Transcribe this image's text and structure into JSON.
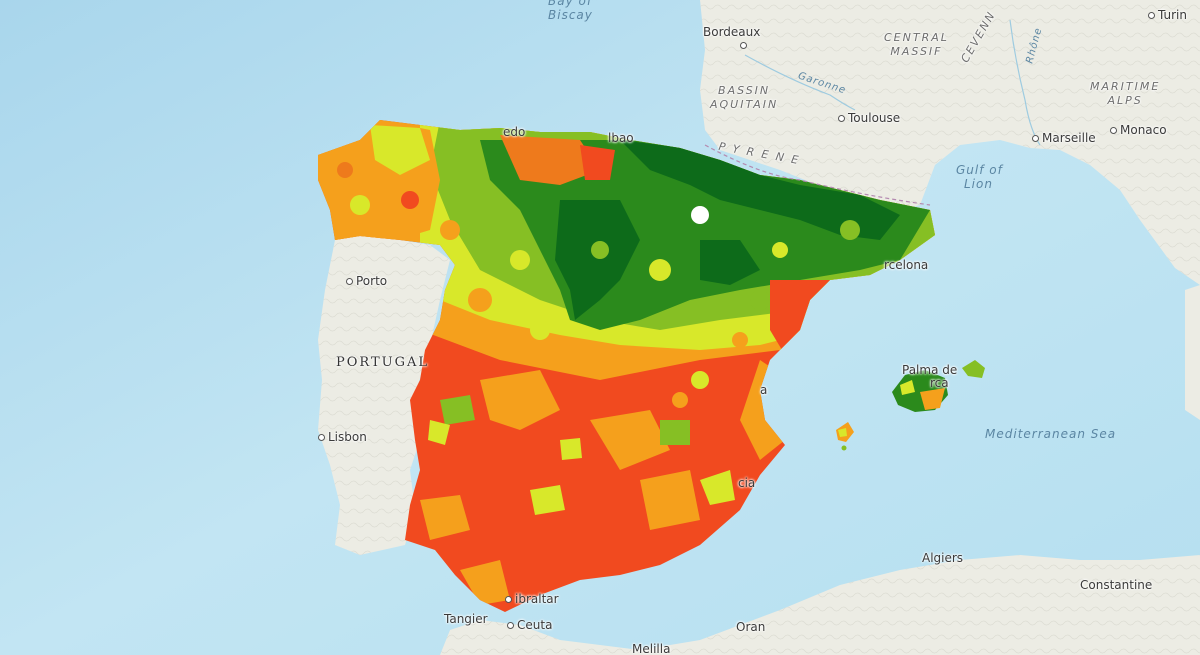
{
  "map": {
    "colors": {
      "sea": "#bfe3f2",
      "land": "#ebebe4",
      "high": "#0d6b1a",
      "mid_high": "#6aaa1e",
      "mid": "#d8e82a",
      "mid_low": "#f5a01c",
      "low": "#f14a1f"
    },
    "cities": [
      {
        "id": "bordeaux",
        "name": "Bordeaux"
      },
      {
        "id": "toulouse",
        "name": "Toulouse"
      },
      {
        "id": "marseille",
        "name": "Marseille"
      },
      {
        "id": "monaco",
        "name": "Monaco"
      },
      {
        "id": "turin",
        "name": "Turin"
      },
      {
        "id": "porto",
        "name": "Porto"
      },
      {
        "id": "lisbon",
        "name": "Lisbon"
      },
      {
        "id": "barcelona",
        "name": "rcelona"
      },
      {
        "id": "palma",
        "name": "Palma de"
      },
      {
        "id": "palma2",
        "name": "rca"
      },
      {
        "id": "valencia",
        "name": "a"
      },
      {
        "id": "alicante",
        "name": "cia"
      },
      {
        "id": "gibraltar",
        "name": "ibraltar"
      },
      {
        "id": "tangier",
        "name": "Tangier"
      },
      {
        "id": "ceuta",
        "name": "Ceuta"
      },
      {
        "id": "oran",
        "name": "Oran"
      },
      {
        "id": "melilla",
        "name": "Melilla"
      },
      {
        "id": "algiers",
        "name": "Algiers"
      },
      {
        "id": "constantine",
        "name": "Constantine"
      },
      {
        "id": "bilbao",
        "name": "lbao"
      },
      {
        "id": "oviedo",
        "name": "edo"
      }
    ],
    "water": {
      "biscay_1": "Bay of",
      "biscay_2": "Biscay",
      "lion_1": "Gulf of",
      "lion_2": "Lion",
      "med": "Mediterranean Sea",
      "garonne": "Garonne",
      "rhone": "Rhône"
    },
    "regions": {
      "massif_1": "CENTRAL",
      "massif_2": "MASSIF",
      "aquitain_1": "BASSIN",
      "aquitain_2": "AQUITAIN",
      "pyrenees": "P Y R E N E",
      "alpes_1": "MARITIME",
      "alpes_2": "ALPS",
      "cevennes": "CEVENN"
    },
    "countries": {
      "portugal": "PORTUGAL"
    }
  }
}
